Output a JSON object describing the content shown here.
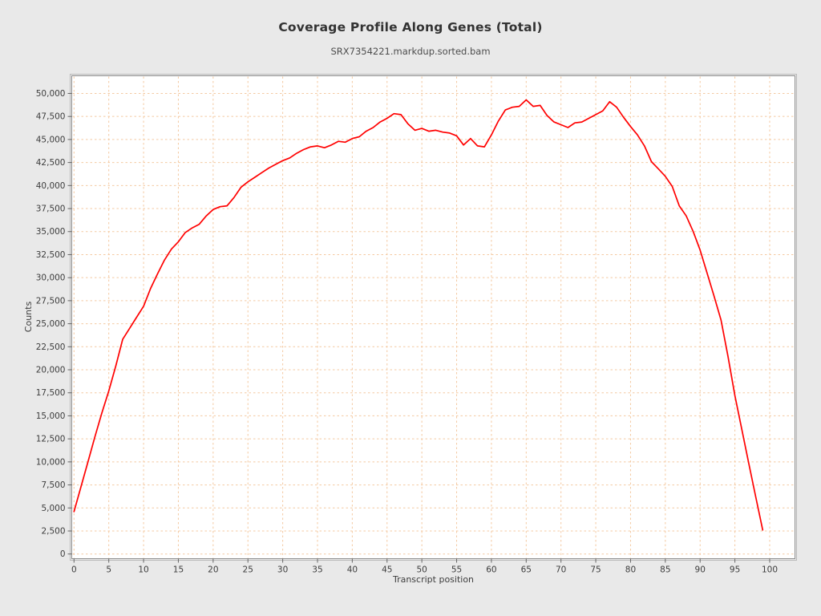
{
  "page": {
    "background": "#e9e9e9"
  },
  "header": {
    "title": "Coverage Profile Along Genes (Total)",
    "subtitle": "SRX7354221.markdup.sorted.bam"
  },
  "chart_data": {
    "type": "line",
    "title": "Coverage Profile Along Genes (Total)",
    "subtitle": "SRX7354221.markdup.sorted.bam",
    "xlabel": "Transcript position",
    "ylabel": "Counts",
    "legend": "none",
    "grid": true,
    "grid_color": "#f4c9a1",
    "grid_style": "dashed",
    "plot_background": "#ffffff",
    "frame_color": "#8f8f8f",
    "line_color": "#ff0000",
    "x_ticks": [
      0,
      5,
      10,
      15,
      20,
      25,
      30,
      35,
      40,
      45,
      50,
      55,
      60,
      65,
      70,
      75,
      80,
      85,
      90,
      95,
      100
    ],
    "y_ticks": [
      0,
      2500,
      5000,
      7500,
      10000,
      12500,
      15000,
      17500,
      20000,
      22500,
      25000,
      27500,
      30000,
      32500,
      35000,
      37500,
      40000,
      42500,
      45000,
      47500,
      50000
    ],
    "y_tick_format": "comma",
    "xlim": [
      0,
      103.7
    ],
    "ylim": [
      -530,
      52380
    ],
    "x_start": 0,
    "x_step": 1,
    "series": [
      {
        "name": "SRX7354221.markdup.sorted.bam",
        "color": "#ff0000",
        "x": [
          0,
          1,
          2,
          3,
          4,
          5,
          6,
          7,
          8,
          9,
          10,
          11,
          12,
          13,
          14,
          15,
          16,
          17,
          18,
          19,
          20,
          21,
          22,
          23,
          24,
          25,
          26,
          27,
          28,
          29,
          30,
          31,
          32,
          33,
          34,
          35,
          36,
          37,
          38,
          39,
          40,
          41,
          42,
          43,
          44,
          45,
          46,
          47,
          48,
          49,
          50,
          51,
          52,
          53,
          54,
          55,
          56,
          57,
          58,
          59,
          60,
          61,
          62,
          63,
          64,
          65,
          66,
          67,
          68,
          69,
          70,
          71,
          72,
          73,
          74,
          75,
          76,
          77,
          78,
          79,
          80,
          81,
          82,
          83,
          84,
          85,
          86,
          87,
          88,
          89,
          90,
          91,
          92,
          93,
          94,
          95,
          96,
          97,
          98,
          99
        ],
        "values": [
          4600,
          7300,
          10000,
          12700,
          15300,
          17700,
          20400,
          23300,
          24500,
          25700,
          26900,
          28800,
          30400,
          31900,
          33100,
          33900,
          34900,
          35400,
          35800,
          36700,
          37400,
          37700,
          37800,
          38700,
          39800,
          40400,
          40900,
          41400,
          41900,
          42300,
          42700,
          43000,
          43500,
          43900,
          44200,
          44300,
          44100,
          44400,
          44800,
          44700,
          45100,
          45300,
          45900,
          46300,
          46900,
          47300,
          47800,
          47700,
          46700,
          46000,
          46200,
          45900,
          46000,
          45800,
          45700,
          45400,
          44400,
          45100,
          44300,
          44200,
          45500,
          47000,
          48200,
          48500,
          48600,
          49300,
          48600,
          48700,
          47600,
          46900,
          46600,
          46300,
          46800,
          46900,
          47300,
          47700,
          48100,
          49100,
          48500,
          47400,
          46400,
          45500,
          44300,
          42600,
          41800,
          41000,
          39900,
          37800,
          36700,
          35000,
          33000,
          30500,
          28000,
          25400,
          21500,
          17200,
          13500,
          9800,
          6200,
          2600
        ]
      }
    ]
  }
}
